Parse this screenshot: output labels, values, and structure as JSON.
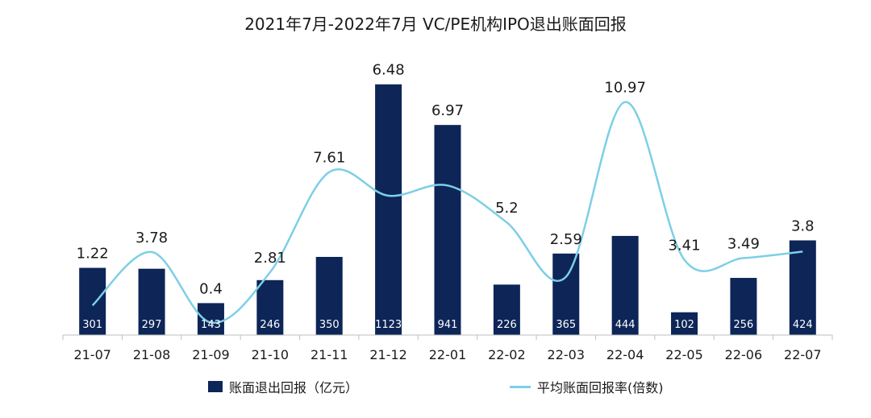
{
  "chart_data": {
    "type": "bar",
    "title": "2021年7月-2022年7月  VC/PE机构IPO退出账面回报",
    "categories": [
      "21-07",
      "21-08",
      "21-09",
      "21-10",
      "21-11",
      "21-12",
      "22-01",
      "22-02",
      "22-03",
      "22-04",
      "22-05",
      "22-06",
      "22-07"
    ],
    "series": [
      {
        "name": "账面退出回报（亿元）",
        "type": "bar",
        "axis": "left",
        "color": "#0d2557",
        "values": [
          301,
          297,
          143,
          246,
          350,
          1123,
          941,
          226,
          365,
          444,
          102,
          256,
          424
        ]
      },
      {
        "name": "平均账面回报率(倍数)",
        "type": "line",
        "axis": "right",
        "color": "#7dcfe6",
        "values": [
          1.22,
          3.78,
          0.4,
          2.81,
          7.61,
          6.48,
          6.97,
          5.2,
          2.59,
          10.97,
          3.41,
          3.49,
          3.8
        ]
      }
    ],
    "left_axis_range": [
      0,
      1140
    ],
    "right_axis_range": [
      -0.2,
      12
    ],
    "grid": false,
    "legend_position": "bottom"
  }
}
